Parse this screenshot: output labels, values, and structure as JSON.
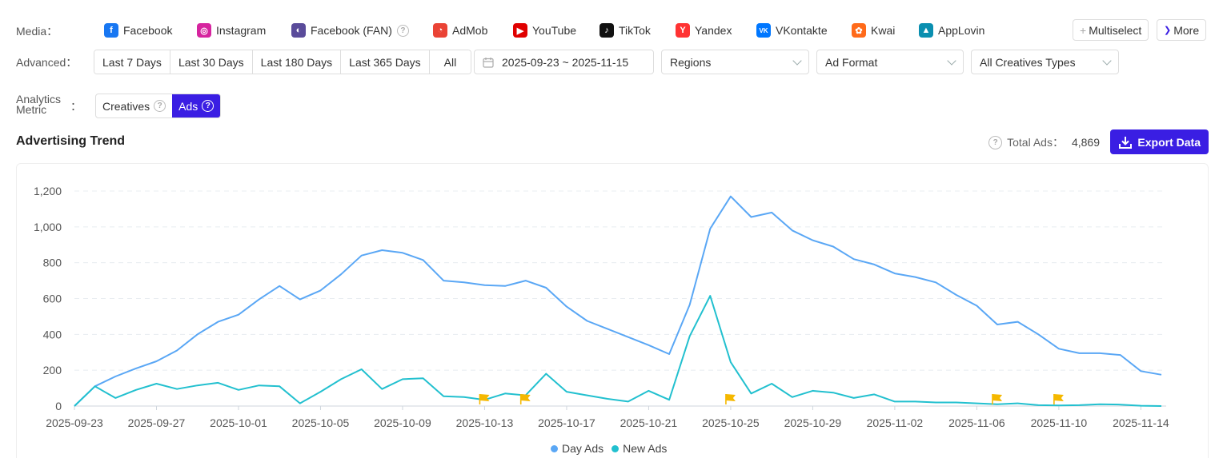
{
  "media": {
    "label": "Media：",
    "items": [
      {
        "name": "Facebook",
        "icon": "facebook-icon",
        "color": "#1877f2",
        "glyph": "f"
      },
      {
        "name": "Instagram",
        "icon": "instagram-icon",
        "color": "#d6249f",
        "glyph": "◎"
      },
      {
        "name": "Facebook (FAN)",
        "icon": "facebook-fan-icon",
        "color": "#5a4b9a",
        "glyph": "◐",
        "help": true
      },
      {
        "name": "AdMob",
        "icon": "admob-icon",
        "color": "#ea4335",
        "glyph": "◔"
      },
      {
        "name": "YouTube",
        "icon": "youtube-icon",
        "color": "#e00000",
        "glyph": "▶"
      },
      {
        "name": "TikTok",
        "icon": "tiktok-icon",
        "color": "#111111",
        "glyph": "♪"
      },
      {
        "name": "Yandex",
        "icon": "yandex-icon",
        "color": "#f33",
        "glyph": "Y"
      },
      {
        "name": "VKontakte",
        "icon": "vkontakte-icon",
        "color": "#0077ff",
        "glyph": "VK"
      },
      {
        "name": "Kwai",
        "icon": "kwai-icon",
        "color": "#ff6a1a",
        "glyph": "✿"
      },
      {
        "name": "AppLovin",
        "icon": "applovin-icon",
        "color": "#0a8fb0",
        "glyph": "▲"
      }
    ],
    "multiselect_label": "Multiselect",
    "more_label": "More"
  },
  "advanced": {
    "label": "Advanced：",
    "ranges": [
      "Last 7 Days",
      "Last 30 Days",
      "Last 180 Days",
      "Last 365 Days",
      "All"
    ],
    "date_range": "2025-09-23 ~ 2025-11-15",
    "regions": "Regions",
    "ad_format": "Ad Format",
    "creative_types": "All Creatives Types"
  },
  "metric": {
    "label_line1": "Analytics",
    "label_line2": "Metric",
    "colon": "：",
    "options": [
      "Creatives",
      "Ads"
    ],
    "active": "Ads"
  },
  "trend": {
    "title": "Advertising Trend",
    "total_label": "Total Ads：",
    "total_value": "4,869",
    "export_label": "Export Data"
  },
  "colors": {
    "day_ads": "#5aa7f5",
    "new_ads": "#22c0cf",
    "flag": "#f5b800",
    "accent": "#3a1ee3"
  },
  "chart_data": {
    "type": "line",
    "ylim": [
      0,
      1200
    ],
    "yticks": [
      "0",
      "200",
      "400",
      "600",
      "800",
      "1,000",
      "1,200"
    ],
    "xticks": [
      "2025-09-23",
      "2025-09-27",
      "2025-10-01",
      "2025-10-05",
      "2025-10-09",
      "2025-10-13",
      "2025-10-17",
      "2025-10-21",
      "2025-10-25",
      "2025-10-29",
      "2025-11-02",
      "2025-11-06",
      "2025-11-10",
      "2025-11-14"
    ],
    "x": [
      "2025-09-23",
      "2025-09-24",
      "2025-09-25",
      "2025-09-26",
      "2025-09-27",
      "2025-09-28",
      "2025-09-29",
      "2025-09-30",
      "2025-10-01",
      "2025-10-02",
      "2025-10-03",
      "2025-10-04",
      "2025-10-05",
      "2025-10-06",
      "2025-10-07",
      "2025-10-08",
      "2025-10-09",
      "2025-10-10",
      "2025-10-11",
      "2025-10-12",
      "2025-10-13",
      "2025-10-14",
      "2025-10-15",
      "2025-10-16",
      "2025-10-17",
      "2025-10-18",
      "2025-10-19",
      "2025-10-20",
      "2025-10-21",
      "2025-10-22",
      "2025-10-23",
      "2025-10-24",
      "2025-10-25",
      "2025-10-26",
      "2025-10-27",
      "2025-10-28",
      "2025-10-29",
      "2025-10-30",
      "2025-10-31",
      "2025-11-01",
      "2025-11-02",
      "2025-11-03",
      "2025-11-04",
      "2025-11-05",
      "2025-11-06",
      "2025-11-07",
      "2025-11-08",
      "2025-11-09",
      "2025-11-10",
      "2025-11-11",
      "2025-11-12",
      "2025-11-13",
      "2025-11-14",
      "2025-11-15"
    ],
    "series": [
      {
        "name": "Day Ads",
        "values": [
          0,
          110,
          165,
          210,
          250,
          310,
          400,
          470,
          510,
          595,
          670,
          595,
          645,
          735,
          840,
          870,
          855,
          815,
          700,
          690,
          675,
          670,
          700,
          660,
          555,
          475,
          430,
          385,
          340,
          290,
          565,
          990,
          1170,
          1055,
          1080,
          980,
          925,
          890,
          820,
          790,
          740,
          720,
          690,
          620,
          560,
          455,
          470,
          400,
          320,
          295,
          295,
          285,
          195,
          175
        ]
      },
      {
        "name": "New Ads",
        "values": [
          0,
          110,
          45,
          90,
          125,
          95,
          115,
          130,
          90,
          115,
          110,
          15,
          80,
          150,
          205,
          95,
          150,
          155,
          55,
          50,
          35,
          70,
          60,
          180,
          80,
          60,
          40,
          25,
          85,
          35,
          390,
          615,
          245,
          70,
          125,
          50,
          85,
          75,
          45,
          65,
          25,
          25,
          20,
          20,
          15,
          10,
          15,
          5,
          3,
          5,
          10,
          8,
          2,
          0
        ]
      }
    ],
    "flags": [
      "2025-10-13",
      "2025-10-15",
      "2025-10-25",
      "2025-11-07",
      "2025-11-10"
    ],
    "legend": "bottom-center",
    "grid": true
  }
}
